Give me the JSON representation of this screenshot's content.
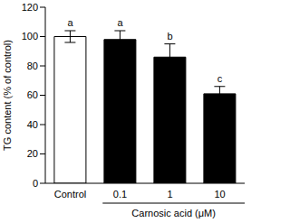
{
  "chart_data": {
    "type": "bar",
    "categories": [
      "Control",
      "0.1",
      "1",
      "10"
    ],
    "values": [
      100,
      98,
      86,
      61
    ],
    "errors": [
      4,
      6,
      9,
      5
    ],
    "annotations": [
      "a",
      "a",
      "b",
      "c"
    ],
    "colors": [
      "#ffffff",
      "#000000",
      "#000000",
      "#000000"
    ],
    "xlabel": "Carnosic acid (μM)",
    "ylabel": "TG content (% of control)",
    "ylim": [
      0,
      120
    ],
    "yticks": [
      0,
      20,
      40,
      60,
      80,
      100,
      120
    ]
  }
}
